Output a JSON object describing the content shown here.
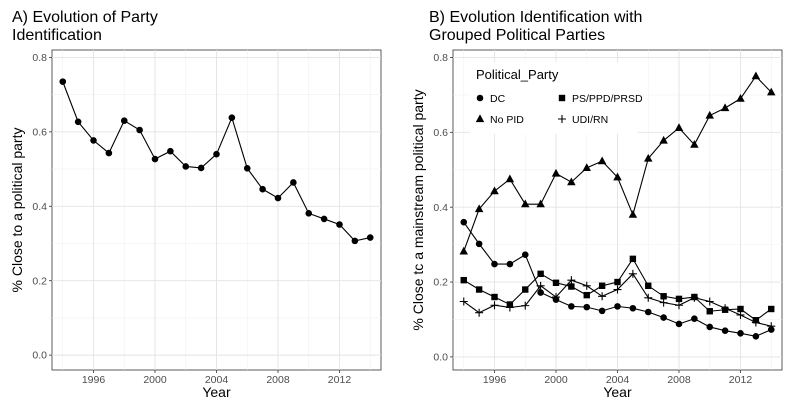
{
  "chart_data": [
    {
      "type": "line",
      "title": "A) Evolution of Party\n Identification",
      "xlabel": "Year",
      "ylabel": "% Close to a political party",
      "xlim": [
        1993.3,
        2014.7
      ],
      "ylim": [
        -0.04,
        0.82
      ],
      "xticks": [
        1996,
        2000,
        2004,
        2008,
        2012
      ],
      "yticks": [
        0.0,
        0.2,
        0.4,
        0.6,
        0.8
      ],
      "ytick_labels": [
        "0.0",
        "0.2",
        "0.4",
        "0.6",
        "0.8"
      ],
      "grid": true,
      "series": [
        {
          "marker": "circle",
          "x": [
            1994,
            1995,
            1996,
            1997,
            1998,
            1999,
            2000,
            2001,
            2002,
            2003,
            2004,
            2005,
            2006,
            2007,
            2008,
            2009,
            2010,
            2011,
            2012,
            2013,
            2014
          ],
          "y": [
            0.735,
            0.627,
            0.577,
            0.543,
            0.63,
            0.605,
            0.527,
            0.548,
            0.507,
            0.503,
            0.54,
            0.638,
            0.502,
            0.446,
            0.422,
            0.464,
            0.381,
            0.366,
            0.351,
            0.307,
            0.316
          ]
        }
      ]
    },
    {
      "type": "line",
      "title": "B) Evolution Identification with\n Grouped Political Parties",
      "xlabel": "Year",
      "ylabel": "% Close tc a mainstream political party",
      "xlim": [
        1993.3,
        2014.7
      ],
      "ylim": [
        -0.035,
        0.82
      ],
      "xticks": [
        1996,
        2000,
        2004,
        2008,
        2012
      ],
      "yticks": [
        0.0,
        0.2,
        0.4,
        0.6,
        0.8
      ],
      "ytick_labels": [
        "0.0",
        "0.2",
        "0.4",
        "0.6",
        "0.8"
      ],
      "grid": true,
      "legend": {
        "title": "Political_Party",
        "position": "top-left"
      },
      "series": [
        {
          "name": "DC",
          "marker": "circle",
          "x": [
            1994,
            1995,
            1996,
            1997,
            1998,
            1999,
            2000,
            2001,
            2002,
            2003,
            2004,
            2005,
            2006,
            2007,
            2008,
            2009,
            2010,
            2011,
            2012,
            2013,
            2014
          ],
          "y": [
            0.36,
            0.302,
            0.248,
            0.248,
            0.273,
            0.172,
            0.153,
            0.135,
            0.133,
            0.123,
            0.135,
            0.13,
            0.12,
            0.105,
            0.088,
            0.102,
            0.08,
            0.07,
            0.063,
            0.055,
            0.073
          ]
        },
        {
          "name": "No PID",
          "marker": "triangle",
          "x": [
            1994,
            1995,
            1996,
            1997,
            1998,
            1999,
            2000,
            2001,
            2002,
            2003,
            2004,
            2005,
            2006,
            2007,
            2008,
            2009,
            2010,
            2011,
            2012,
            2013,
            2014
          ],
          "y": [
            0.282,
            0.395,
            0.443,
            0.475,
            0.408,
            0.408,
            0.49,
            0.467,
            0.505,
            0.523,
            0.48,
            0.38,
            0.53,
            0.578,
            0.612,
            0.567,
            0.645,
            0.665,
            0.69,
            0.75,
            0.707
          ]
        },
        {
          "name": "PS/PPD/PRSD",
          "marker": "square",
          "x": [
            1994,
            1995,
            1996,
            1997,
            1998,
            1999,
            2000,
            2001,
            2002,
            2003,
            2004,
            2005,
            2006,
            2007,
            2008,
            2009,
            2010,
            2011,
            2012,
            2013,
            2014
          ],
          "y": [
            0.205,
            0.18,
            0.16,
            0.14,
            0.18,
            0.222,
            0.198,
            0.188,
            0.165,
            0.19,
            0.2,
            0.262,
            0.19,
            0.162,
            0.155,
            0.16,
            0.122,
            0.126,
            0.128,
            0.098,
            0.128
          ]
        },
        {
          "name": "UDI/RN",
          "marker": "plus",
          "x": [
            1994,
            1995,
            1996,
            1997,
            1998,
            1999,
            2000,
            2001,
            2002,
            2003,
            2004,
            2005,
            2006,
            2007,
            2008,
            2009,
            2010,
            2011,
            2012,
            2013,
            2014
          ],
          "y": [
            0.148,
            0.118,
            0.138,
            0.132,
            0.137,
            0.19,
            0.16,
            0.205,
            0.19,
            0.162,
            0.18,
            0.222,
            0.158,
            0.145,
            0.138,
            0.158,
            0.148,
            0.13,
            0.112,
            0.092,
            0.082
          ]
        }
      ]
    }
  ]
}
